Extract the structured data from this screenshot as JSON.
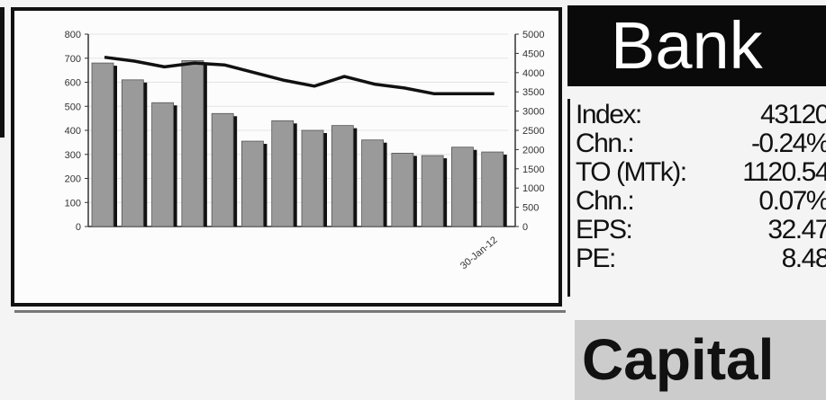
{
  "chart_data": {
    "type": "bar",
    "categories": [
      "",
      "",
      "",
      "",
      "",
      "",
      "",
      "",
      "",
      "",
      "",
      "",
      "",
      "30-Jan-12"
    ],
    "series": [
      {
        "type": "bar",
        "axis": "left",
        "values": [
          680,
          610,
          515,
          690,
          470,
          355,
          440,
          400,
          420,
          360,
          305,
          295,
          330,
          310
        ]
      },
      {
        "type": "line",
        "axis": "right",
        "values": [
          4400,
          4300,
          4150,
          4250,
          4200,
          4000,
          3800,
          3650,
          3900,
          3700,
          3600,
          3450,
          3450,
          3450
        ]
      }
    ],
    "y_left": {
      "ylim": [
        0,
        800
      ],
      "ticks": [
        "0",
        "100",
        "200",
        "300",
        "400",
        "500",
        "600",
        "700",
        "800"
      ]
    },
    "y_right": {
      "ylim": [
        0,
        5000
      ],
      "ticks": [
        "0",
        "500",
        "1000",
        "1500",
        "2000",
        "2500",
        "3000",
        "3500",
        "4000",
        "4500",
        "5000"
      ]
    },
    "grid": true,
    "title": "",
    "xlabel": "",
    "ylabel": ""
  },
  "panel": {
    "title": "Bank",
    "stats": [
      {
        "label": "Index:",
        "value": "43120"
      },
      {
        "label": "Chn.:",
        "value": "-0.24%"
      },
      {
        "label": "TO (MTk):",
        "value": "1120.54"
      },
      {
        "label": "Chn.:",
        "value": "0.07%"
      },
      {
        "label": "EPS:",
        "value": "32.47"
      },
      {
        "label": "PE:",
        "value": "8.48"
      }
    ],
    "footer": "Capital"
  },
  "colors": {
    "bar_fill": "#9a9a9a",
    "bar_shadow": "#111111",
    "line": "#111111",
    "title_bg": "#0a0a0a"
  }
}
